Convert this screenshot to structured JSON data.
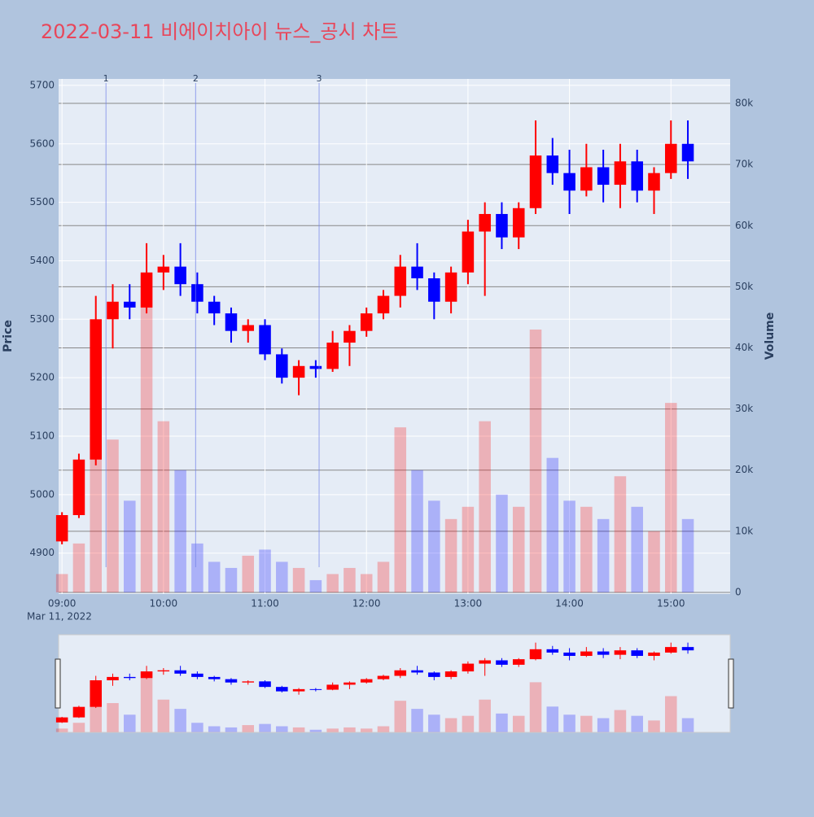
{
  "chart_data": {
    "type": "candlestick",
    "title": "2022-03-11 비에이치아이 뉴스_공시 차트",
    "y_title": "Price",
    "y2_title": "Volume",
    "x": [
      "09:00",
      "09:10",
      "09:20",
      "09:30",
      "09:40",
      "09:50",
      "10:00",
      "10:10",
      "10:20",
      "10:30",
      "10:40",
      "10:50",
      "11:00",
      "11:10",
      "11:20",
      "11:30",
      "11:40",
      "11:50",
      "12:00",
      "12:10",
      "12:20",
      "12:30",
      "12:40",
      "12:50",
      "13:00",
      "13:10",
      "13:20",
      "13:30",
      "13:40",
      "13:50",
      "14:00",
      "14:10",
      "14:20",
      "14:30",
      "14:40",
      "14:50",
      "15:00",
      "15:10"
    ],
    "open": [
      4920,
      4965,
      5060,
      5300,
      5330,
      5320,
      5380,
      5390,
      5360,
      5330,
      5310,
      5280,
      5290,
      5240,
      5200,
      5220,
      5215,
      5260,
      5280,
      5310,
      5340,
      5390,
      5370,
      5330,
      5380,
      5450,
      5480,
      5440,
      5490,
      5580,
      5550,
      5520,
      5560,
      5530,
      5570,
      5520,
      5550,
      5600
    ],
    "high": [
      4970,
      5070,
      5340,
      5360,
      5360,
      5430,
      5410,
      5430,
      5380,
      5340,
      5320,
      5300,
      5300,
      5250,
      5230,
      5230,
      5280,
      5290,
      5320,
      5350,
      5410,
      5430,
      5380,
      5390,
      5470,
      5500,
      5500,
      5500,
      5640,
      5610,
      5590,
      5600,
      5590,
      5600,
      5590,
      5560,
      5640,
      5640
    ],
    "low": [
      4915,
      4960,
      5050,
      5250,
      5300,
      5310,
      5350,
      5340,
      5310,
      5290,
      5260,
      5260,
      5230,
      5190,
      5170,
      5200,
      5210,
      5220,
      5270,
      5300,
      5320,
      5350,
      5300,
      5310,
      5360,
      5340,
      5420,
      5420,
      5480,
      5530,
      5480,
      5510,
      5500,
      5490,
      5500,
      5480,
      5540,
      5540
    ],
    "close": [
      4965,
      5060,
      5300,
      5330,
      5320,
      5380,
      5390,
      5360,
      5330,
      5310,
      5280,
      5290,
      5240,
      5200,
      5220,
      5215,
      5260,
      5280,
      5310,
      5340,
      5390,
      5370,
      5330,
      5380,
      5450,
      5480,
      5440,
      5490,
      5580,
      5550,
      5520,
      5560,
      5530,
      5570,
      5520,
      5550,
      5600,
      5570
    ],
    "volume": [
      3000,
      8000,
      30000,
      25000,
      15000,
      52000,
      28000,
      20000,
      8000,
      5000,
      4000,
      6000,
      7000,
      5000,
      4000,
      2000,
      3000,
      4000,
      3000,
      5000,
      27000,
      20000,
      15000,
      12000,
      14000,
      28000,
      16000,
      14000,
      43000,
      22000,
      15000,
      14000,
      12000,
      19000,
      14000,
      10000,
      31000,
      12000
    ],
    "up_color": "#ff0000",
    "down_color": "#0000ff",
    "xlim": [
      "08:58",
      "15:35"
    ],
    "xticks": [
      "09:00",
      "10:00",
      "11:00",
      "12:00",
      "13:00",
      "14:00",
      "15:00"
    ],
    "x_date_label": "Mar 11, 2022",
    "ylim": [
      4830,
      5711
    ],
    "yticks": [
      4900,
      5000,
      5100,
      5200,
      5300,
      5400,
      5500,
      5600,
      5700
    ],
    "y2lim": [
      -270,
      84000
    ],
    "y2ticks": [
      0,
      {
        "value": 10000,
        "label": "10k"
      },
      {
        "value": 20000,
        "label": "20k"
      },
      {
        "value": 30000,
        "label": "30k"
      },
      {
        "value": 40000,
        "label": "40k"
      },
      {
        "value": 50000,
        "label": "50k"
      },
      {
        "value": 60000,
        "label": "60k"
      },
      {
        "value": 70000,
        "label": "70k"
      },
      {
        "value": 80000,
        "label": "80k"
      }
    ],
    "news": [
      {
        "label": "1",
        "time": "09:26"
      },
      {
        "label": "2",
        "time": "10:19"
      },
      {
        "label": "3",
        "time": "11:32"
      }
    ],
    "rangeslider": true
  }
}
